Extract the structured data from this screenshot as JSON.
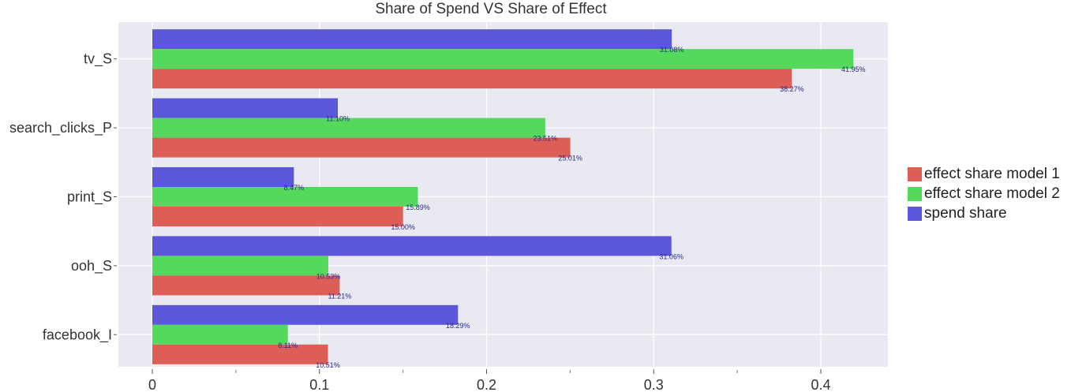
{
  "chart_data": {
    "type": "bar",
    "orientation": "horizontal",
    "title": "Share of Spend VS Share of Effect",
    "xlabel": "",
    "ylabel": "",
    "xlim": [
      -0.02,
      0.437
    ],
    "x_ticks": [
      0,
      0.1,
      0.2,
      0.3,
      0.4
    ],
    "x_tick_labels": [
      "0",
      "0.1",
      "0.2",
      "0.3",
      "0.4"
    ],
    "grid": true,
    "legend_position": "right",
    "categories": [
      "tv_S",
      "search_clicks_P",
      "print_S",
      "ooh_S",
      "facebook_I"
    ],
    "series": [
      {
        "name": "spend share",
        "color": "#5c56db",
        "values": [
          0.3108,
          0.111,
          0.0847,
          0.3106,
          0.1829
        ],
        "labels": [
          "31.08%",
          "11.10%",
          "8.47%",
          "31.06%",
          "18.29%"
        ]
      },
      {
        "name": "effect share model 2",
        "color": "#55d95c",
        "values": [
          0.4195,
          0.2351,
          0.1589,
          0.1053,
          0.0811
        ],
        "labels": [
          "41.95%",
          "23.51%",
          "15.89%",
          "10.53%",
          "8.11%"
        ]
      },
      {
        "name": "effect share model 1",
        "color": "#dc5e56",
        "values": [
          0.3827,
          0.2501,
          0.15,
          0.1121,
          0.1051
        ],
        "labels": [
          "38.27%",
          "25.01%",
          "15.00%",
          "11.21%",
          "10.51%"
        ]
      }
    ],
    "legend_order": [
      "effect share model 1",
      "effect share model 2",
      "spend share"
    ]
  },
  "colors": {
    "plot_background": "#e9e9f1",
    "grid": "#ffffff",
    "label_text": "#2a2a8a"
  }
}
